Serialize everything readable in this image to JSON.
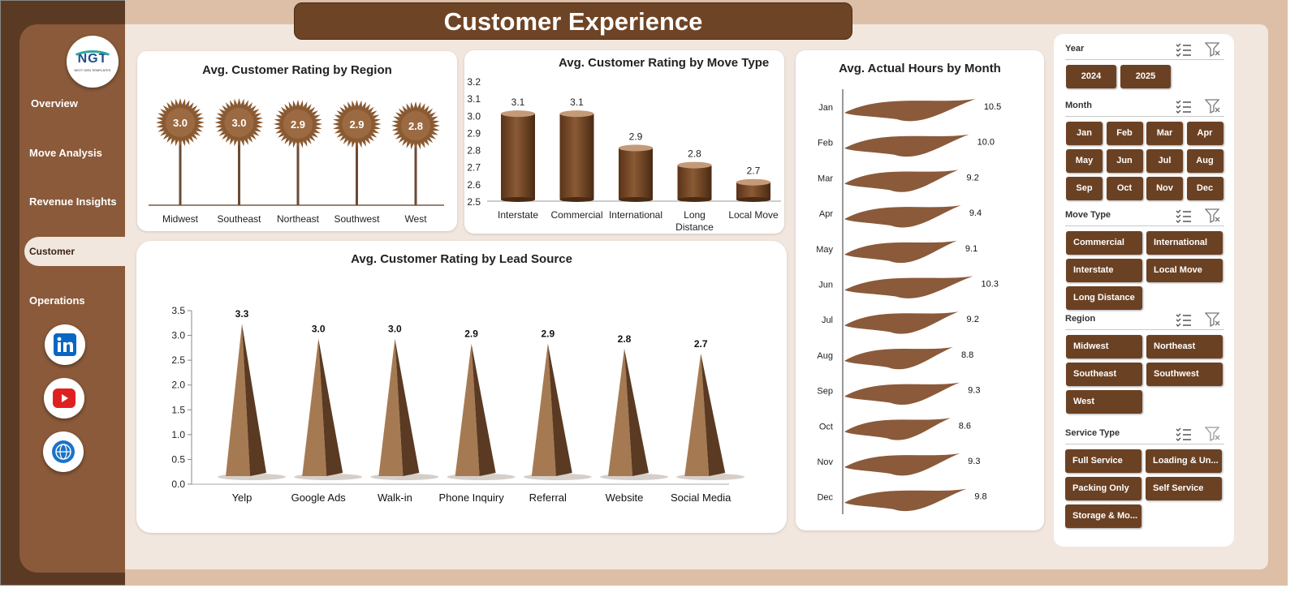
{
  "header": {
    "title": "Customer Experience"
  },
  "logo": {
    "text": "NGT",
    "subtext": "NEXT GEN TEMPLATES"
  },
  "nav": {
    "items": [
      "Overview",
      "Move Analysis",
      "Revenue Insights",
      "Customer",
      "Operations"
    ],
    "active": "Customer"
  },
  "colors": {
    "brown_dark": "#6b4123",
    "brown_mid": "#8a5a3a",
    "bg": "#f2e7de"
  },
  "social": [
    "linkedin-icon",
    "youtube-icon",
    "globe-icon"
  ],
  "charts": {
    "region": {
      "title": "Avg. Customer Rating by Region",
      "chart_data": {
        "type": "bar",
        "categories": [
          "Midwest",
          "Southeast",
          "Northeast",
          "Southwest",
          "West"
        ],
        "values": [
          3.0,
          3.0,
          2.9,
          2.9,
          2.8
        ],
        "labels": [
          "3.0",
          "3.0",
          "2.9",
          "2.9",
          "2.8"
        ]
      }
    },
    "move_type": {
      "title": "Avg. Customer Rating by Move Type",
      "chart_data": {
        "type": "bar",
        "categories": [
          "Interstate",
          "Commercial",
          "International",
          "Long Distance",
          "Local Move"
        ],
        "values": [
          3.1,
          3.1,
          2.9,
          2.8,
          2.7
        ],
        "ylim": [
          2.5,
          3.2
        ],
        "yticks": [
          "3.2",
          "3.1",
          "3.0",
          "2.9",
          "2.8",
          "2.7",
          "2.6",
          "2.5"
        ]
      }
    },
    "lead_source": {
      "title": "Avg. Customer Rating by Lead Source",
      "chart_data": {
        "type": "bar",
        "categories": [
          "Yelp",
          "Google Ads",
          "Walk-in",
          "Phone Inquiry",
          "Referral",
          "Website",
          "Social Media"
        ],
        "values": [
          3.3,
          3.0,
          3.0,
          2.9,
          2.9,
          2.8,
          2.7
        ],
        "ylim": [
          0,
          3.5
        ],
        "yticks": [
          "3.5",
          "3.0",
          "2.5",
          "2.0",
          "1.5",
          "1.0",
          "0.5",
          "0.0"
        ]
      }
    },
    "hours": {
      "title": "Avg. Actual Hours by Month",
      "chart_data": {
        "type": "bar",
        "categories": [
          "Jan",
          "Feb",
          "Mar",
          "Apr",
          "May",
          "Jun",
          "Jul",
          "Aug",
          "Sep",
          "Oct",
          "Nov",
          "Dec"
        ],
        "values": [
          10.5,
          10.0,
          9.2,
          9.4,
          9.1,
          10.3,
          9.2,
          8.8,
          9.3,
          8.6,
          9.3,
          9.8
        ],
        "labels": [
          "10.5",
          "10.0",
          "9.2",
          "9.4",
          "9.1",
          "10.3",
          "9.2",
          "8.8",
          "9.3",
          "8.6",
          "9.3",
          "9.8"
        ]
      }
    }
  },
  "slicers": {
    "year": {
      "label": "Year",
      "options": [
        "2024",
        "2025"
      ]
    },
    "month": {
      "label": "Month",
      "options": [
        "Jan",
        "Feb",
        "Mar",
        "Apr",
        "May",
        "Jun",
        "Jul",
        "Aug",
        "Sep",
        "Oct",
        "Nov",
        "Dec"
      ]
    },
    "move_type": {
      "label": "Move Type",
      "options": [
        "Commercial",
        "International",
        "Interstate",
        "Local Move",
        "Long Distance"
      ]
    },
    "region": {
      "label": "Region",
      "options": [
        "Midwest",
        "Northeast",
        "Southeast",
        "Southwest",
        "West"
      ]
    },
    "service_type": {
      "label": "Service Type",
      "options": [
        "Full Service",
        "Loading & Un...",
        "Packing Only",
        "Self Service",
        "Storage & Mo..."
      ]
    }
  }
}
